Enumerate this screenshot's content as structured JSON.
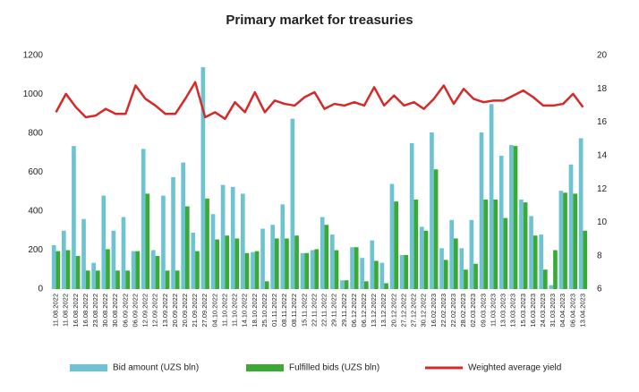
{
  "chart_data": {
    "type": "bar_line",
    "title": "Primary market for treasuries",
    "categories": [
      "11.08.2022",
      "11.08.2022",
      "16.08.2022",
      "16.08.2022",
      "23.08.2022",
      "30.08.2022",
      "30.08.2022",
      "06.09.2022",
      "06.09.2022",
      "12.09.2022",
      "12.09.2022",
      "13.09.2022",
      "20.09.2022",
      "20.09.2022",
      "21.09.2022",
      "27.09.2022",
      "04.10.2022",
      "11.10.2022",
      "11.10.2022",
      "14.10.2022",
      "18.10.2022",
      "25.10.2022",
      "01.11.2022",
      "08.11.2022",
      "08.11.2022",
      "15.11.2022",
      "22.11.2022",
      "22.11.2022",
      "29.11.2022",
      "29.11.2022",
      "06.12.2022",
      "06.12.2022",
      "13.12.2022",
      "13.12.2022",
      "20.12.2022",
      "27.12.2022",
      "27.12.2022",
      "30.12.2022",
      "16.02.2023",
      "22.02.2023",
      "22.02.2023",
      "28.02.2023",
      "02.03.2023",
      "09.03.2023",
      "11.03.2023",
      "13.03.2023",
      "13.03.2023",
      "15.03.2023",
      "16.03.2023",
      "24.03.2023",
      "31.03.2023",
      "04.04.2023",
      "06.04.2023",
      "13.04.2023"
    ],
    "series": [
      {
        "name": "Bid amount (UZS bln)",
        "color": "#6ec3d3",
        "type": "bar",
        "values": [
          225,
          300,
          735,
          360,
          135,
          480,
          300,
          370,
          195,
          720,
          200,
          480,
          575,
          650,
          290,
          1140,
          385,
          535,
          525,
          490,
          190,
          310,
          330,
          435,
          875,
          185,
          200,
          370,
          280,
          45,
          215,
          160,
          250,
          135,
          540,
          175,
          750,
          320,
          805,
          210,
          355,
          210,
          355,
          805,
          950,
          685,
          740,
          460,
          375,
          280,
          20,
          505,
          640,
          775
        ]
      },
      {
        "name": "Fulfilled bids (UZS bln)",
        "color": "#3aaa35",
        "type": "bar",
        "values": [
          195,
          200,
          170,
          95,
          95,
          205,
          95,
          95,
          195,
          490,
          170,
          95,
          95,
          425,
          195,
          465,
          255,
          275,
          260,
          185,
          195,
          40,
          260,
          260,
          275,
          185,
          205,
          330,
          200,
          45,
          215,
          40,
          145,
          30,
          450,
          175,
          460,
          300,
          615,
          150,
          260,
          100,
          130,
          460,
          460,
          365,
          735,
          445,
          275,
          100,
          200,
          495,
          490,
          300
        ]
      },
      {
        "name": "Weighted average yield",
        "color": "#d42a2a",
        "type": "line",
        "axis": "y2",
        "values": [
          16.6,
          17.7,
          16.9,
          16.3,
          16.4,
          16.8,
          16.5,
          16.5,
          18.2,
          17.4,
          17.0,
          16.5,
          16.5,
          17.4,
          18.4,
          16.3,
          16.6,
          16.2,
          17.2,
          16.6,
          17.8,
          16.6,
          17.3,
          17.1,
          17.0,
          17.5,
          17.8,
          16.8,
          17.1,
          17.0,
          17.2,
          17.0,
          18.1,
          17.0,
          17.6,
          17.0,
          17.2,
          16.8,
          17.4,
          18.2,
          17.1,
          18.0,
          17.4,
          17.2,
          17.3,
          17.3,
          17.6,
          17.9,
          17.5,
          17.0,
          17.0,
          17.1,
          17.7,
          16.9
        ]
      }
    ],
    "ylim": [
      0,
      1200
    ],
    "yticks": [
      0,
      200,
      400,
      600,
      800,
      1000,
      1200
    ],
    "y2lim": [
      6,
      20
    ],
    "y2ticks": [
      6,
      8,
      10,
      12,
      14,
      16,
      18,
      20
    ],
    "grid": false,
    "legend": "bottom"
  }
}
